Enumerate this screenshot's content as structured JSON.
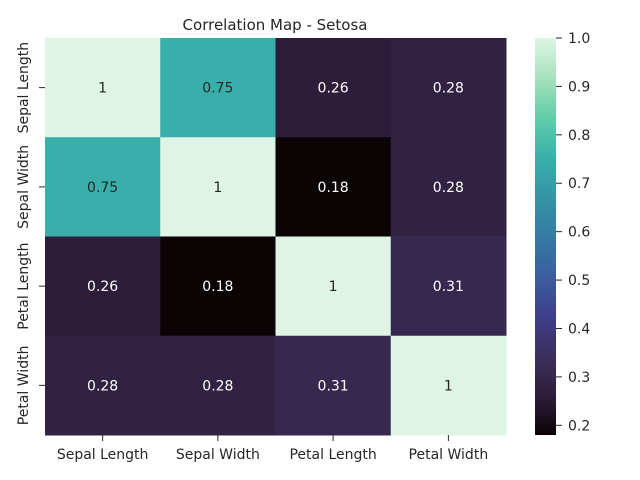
{
  "chart_data": {
    "type": "heatmap",
    "title": "Correlation Map - Setosa",
    "xlabel": "",
    "ylabel": "",
    "x_categories": [
      "Sepal Length",
      "Sepal Width",
      "Petal Length",
      "Petal Width"
    ],
    "y_categories": [
      "Sepal Length",
      "Sepal Width",
      "Petal Length",
      "Petal Width"
    ],
    "values": [
      [
        1,
        0.75,
        0.26,
        0.28
      ],
      [
        0.75,
        1,
        0.18,
        0.28
      ],
      [
        0.26,
        0.18,
        1,
        0.31
      ],
      [
        0.28,
        0.28,
        0.31,
        1
      ]
    ],
    "annotations": [
      [
        "1",
        "0.75",
        "0.26",
        "0.28"
      ],
      [
        "0.75",
        "1",
        "0.18",
        "0.28"
      ],
      [
        "0.26",
        "0.18",
        "1",
        "0.31"
      ],
      [
        "0.28",
        "0.28",
        "0.31",
        "1"
      ]
    ],
    "colorbar": {
      "range": [
        0.18,
        1.0
      ],
      "ticks": [
        0.2,
        0.3,
        0.4,
        0.5,
        0.6,
        0.7,
        0.8,
        0.9,
        1.0
      ],
      "tick_labels": [
        "0.2",
        "0.3",
        "0.4",
        "0.5",
        "0.6",
        "0.7",
        "0.8",
        "0.9",
        "1.0"
      ],
      "colormap": "mako",
      "colors": [
        "#0b0405",
        "#2e1e3b",
        "#3b2f5e",
        "#403f8c",
        "#3b5ea0",
        "#357ba3",
        "#3494a6",
        "#39b0ab",
        "#60cea9",
        "#a7e2be",
        "#def5e5"
      ]
    },
    "grid": false
  }
}
